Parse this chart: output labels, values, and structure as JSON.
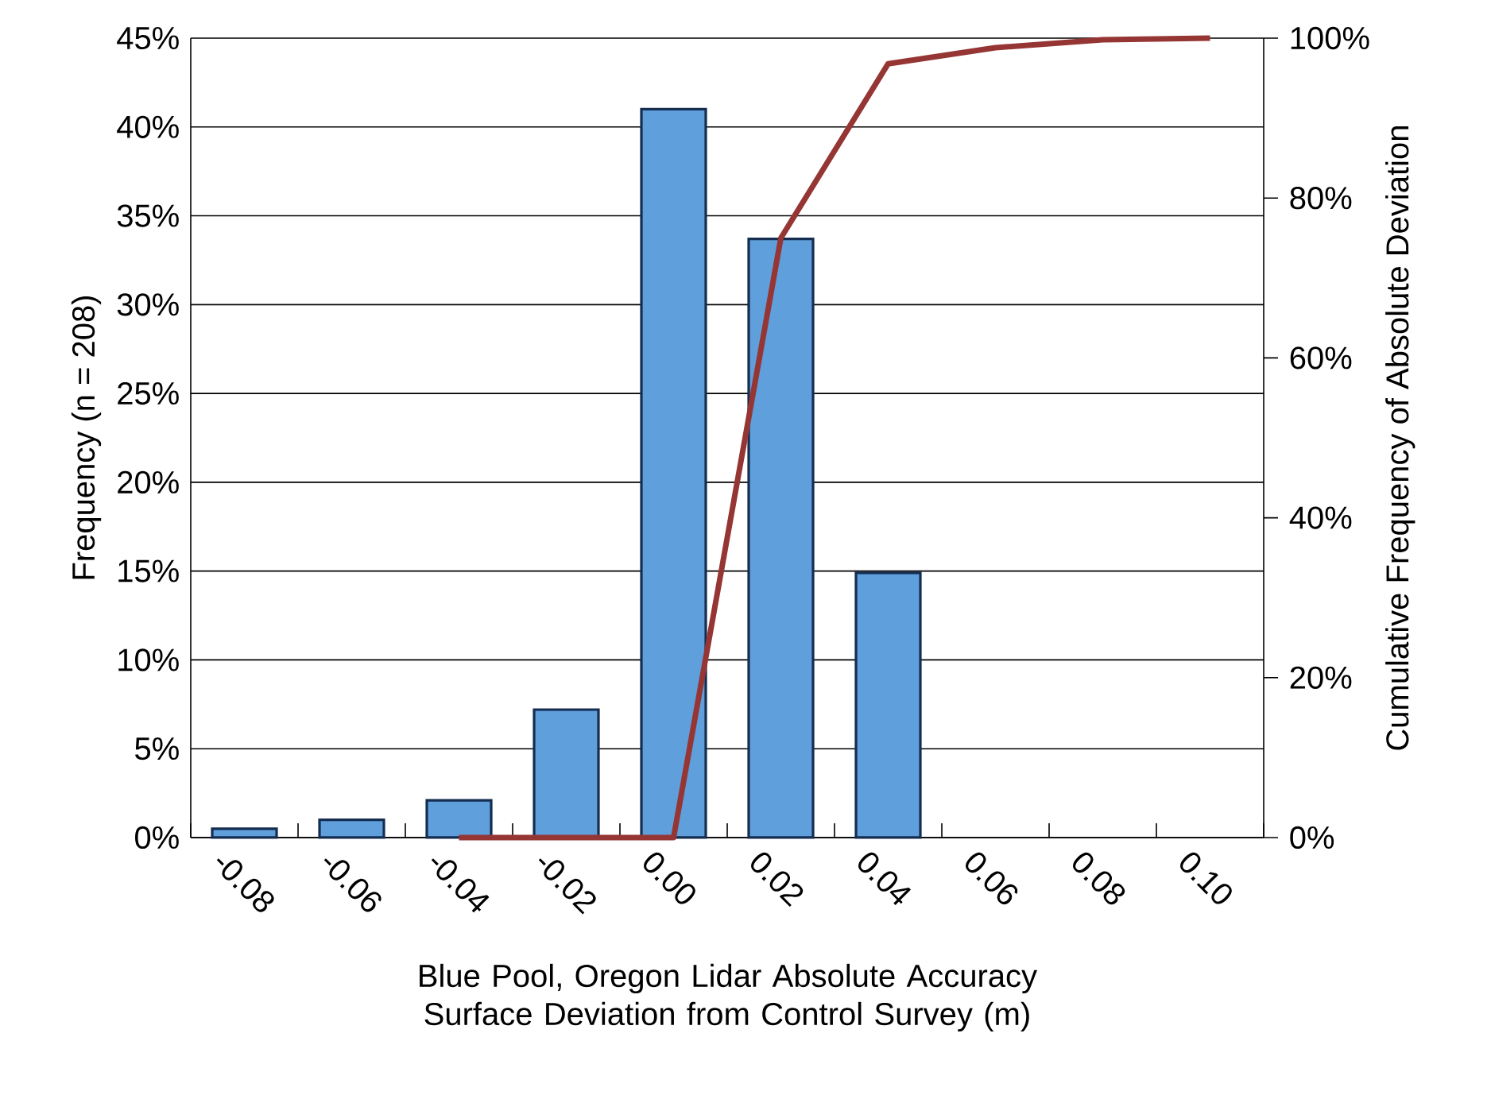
{
  "chart_data": {
    "type": "bar",
    "xlabel": "Blue Pool, Oregon Lidar Absolute Accuracy Surface Deviation from Control Survey (m)",
    "ylabel": "Frequency (n = 208)",
    "y2label": "Cumulative Frequency of Absolute Deviation",
    "categories": [
      "-0.08",
      "-0.06",
      "-0.04",
      "-0.02",
      "0.00",
      "0.02",
      "0.04",
      "0.06",
      "0.08",
      "0.10"
    ],
    "series": [
      {
        "color": "#5f9fdc",
        "values": [
          0.5,
          1.0,
          2.1,
          7.2,
          41.0,
          33.7,
          14.9,
          null,
          null,
          null
        ]
      },
      {
        "type": "line",
        "axis": "y2",
        "color": "#963634",
        "line_style": "solid",
        "values": [
          null,
          null,
          0,
          0,
          0,
          75,
          96.8,
          98.8,
          99.8,
          100
        ]
      }
    ],
    "ylim": [
      0,
      45
    ],
    "yticks": [
      {
        "value": 0,
        "label": "0%"
      },
      {
        "value": 5,
        "label": "5%"
      },
      {
        "value": 10,
        "label": "10%"
      },
      {
        "value": 15,
        "label": "15%"
      },
      {
        "value": 20,
        "label": "20%"
      },
      {
        "value": 25,
        "label": "25%"
      },
      {
        "value": 30,
        "label": "30%"
      },
      {
        "value": 35,
        "label": "35%"
      },
      {
        "value": 40,
        "label": "40%"
      },
      {
        "value": 45,
        "label": "45%"
      }
    ],
    "y2lim": [
      0,
      100
    ],
    "y2ticks": [
      {
        "value": 0,
        "label": "0%"
      },
      {
        "value": 20,
        "label": "20%"
      },
      {
        "value": 40,
        "label": "40%"
      },
      {
        "value": 60,
        "label": "60%"
      },
      {
        "value": 80,
        "label": "80%"
      },
      {
        "value": 100,
        "label": "100%"
      }
    ],
    "grid": "y",
    "legend": false
  }
}
